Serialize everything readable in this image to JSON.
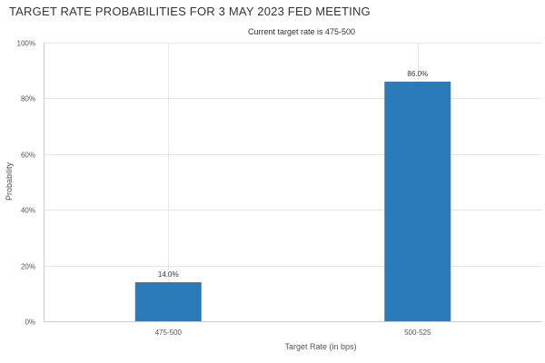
{
  "page": {
    "title": "TARGET RATE PROBABILITIES FOR 3 MAY 2023 FED MEETING"
  },
  "chart_data": {
    "type": "bar",
    "title": "",
    "subtitle": "Current target rate is 475-500",
    "xlabel": "Target Rate (in bps)",
    "ylabel": "Probability",
    "categories": [
      "475-500",
      "500-525"
    ],
    "values": [
      14.0,
      86.0
    ],
    "data_labels": [
      "14.0%",
      "86.0%"
    ],
    "ylim": [
      0,
      100
    ],
    "y_ticks": [
      {
        "value": 0,
        "label": "0%"
      },
      {
        "value": 20,
        "label": "20%"
      },
      {
        "value": 40,
        "label": "40%"
      },
      {
        "value": 60,
        "label": "60%"
      },
      {
        "value": 80,
        "label": "80%"
      },
      {
        "value": 100,
        "label": "100%"
      }
    ],
    "grid": true,
    "legend": "none",
    "bar_color": "#2b7bba",
    "grid_color": "#e6e6e6",
    "axis_color": "#cccccc"
  }
}
